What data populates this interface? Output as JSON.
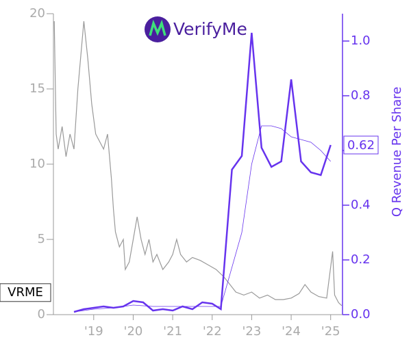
{
  "chart_data": {
    "type": "line",
    "logo": "VerifyMe",
    "xlim": [
      2017.98,
      2025.3
    ],
    "xticks": [
      {
        "value": 2019,
        "label": "'19"
      },
      {
        "value": 2020,
        "label": "'20"
      },
      {
        "value": 2021,
        "label": "'21"
      },
      {
        "value": 2022,
        "label": "'22"
      },
      {
        "value": 2023,
        "label": "'23"
      },
      {
        "value": 2024,
        "label": "'24"
      },
      {
        "value": 2025,
        "label": "'25"
      }
    ],
    "ylim": [
      0,
      20
    ],
    "yticks": [
      0,
      5,
      10,
      15,
      20
    ],
    "y2lim": [
      0,
      1.1
    ],
    "y2ticks": [
      {
        "value": 0,
        "label": "0.0"
      },
      0.2,
      0.4,
      0.6,
      0.8,
      {
        "value": 1,
        "label": "1.0"
      }
    ],
    "y2label": "Q Revenue Per Share",
    "series": [
      {
        "name": "VRME",
        "color": "#999999",
        "axis": "y",
        "x": [
          2018.0,
          2018.05,
          2018.1,
          2018.2,
          2018.3,
          2018.4,
          2018.5,
          2018.6,
          2018.7,
          2018.75,
          2018.85,
          2018.95,
          2019.05,
          2019.15,
          2019.25,
          2019.35,
          2019.45,
          2019.5,
          2019.55,
          2019.65,
          2019.75,
          2019.8,
          2019.9,
          2020.0,
          2020.1,
          2020.2,
          2020.3,
          2020.4,
          2020.5,
          2020.6,
          2020.75,
          2020.9,
          2021.0,
          2021.1,
          2021.2,
          2021.35,
          2021.5,
          2021.7,
          2021.9,
          2022.1,
          2022.3,
          2022.45,
          2022.6,
          2022.8,
          2023.0,
          2023.2,
          2023.4,
          2023.6,
          2023.8,
          2024.0,
          2024.2,
          2024.35,
          2024.5,
          2024.7,
          2024.9,
          2025.05,
          2025.1,
          2025.2,
          2025.28
        ],
        "values": [
          19.5,
          12,
          11,
          12.5,
          10.5,
          12,
          11,
          15,
          18,
          19.5,
          17,
          14,
          12,
          11.5,
          11,
          12,
          9,
          7,
          5.5,
          4.5,
          5,
          3,
          3.5,
          5,
          6.5,
          5,
          4,
          5,
          3.5,
          4,
          3,
          3.5,
          4,
          5,
          4,
          3.5,
          3.8,
          3.6,
          3.3,
          3.0,
          2.5,
          2.0,
          1.5,
          1.3,
          1.5,
          1.1,
          1.3,
          1.0,
          1.0,
          1.1,
          1.4,
          2.0,
          1.5,
          1.2,
          1.1,
          4.2,
          1.3,
          0.8,
          0.6
        ]
      },
      {
        "color": "#6633ee",
        "axis": "y2",
        "width": 2.5,
        "x": [
          2018.5,
          2018.75,
          2019.0,
          2019.25,
          2019.5,
          2019.75,
          2020.0,
          2020.25,
          2020.5,
          2020.75,
          2021.0,
          2021.25,
          2021.5,
          2021.75,
          2022.0,
          2022.22,
          2022.5,
          2022.75,
          2023.0,
          2023.25,
          2023.5,
          2023.75,
          2024.0,
          2024.25,
          2024.5,
          2024.75,
          2025.0
        ],
        "values": [
          0.01,
          0.02,
          0.025,
          0.03,
          0.025,
          0.03,
          0.05,
          0.045,
          0.015,
          0.02,
          0.015,
          0.03,
          0.02,
          0.045,
          0.04,
          0.02,
          0.53,
          0.58,
          1.03,
          0.61,
          0.54,
          0.56,
          0.86,
          0.56,
          0.52,
          0.51,
          0.62
        ]
      },
      {
        "color": "#6633ee",
        "axis": "y2",
        "width": 0.8,
        "x": [
          2018.5,
          2019.0,
          2019.5,
          2020.0,
          2020.5,
          2021.0,
          2021.5,
          2022.0,
          2022.22,
          2022.75,
          2023.0,
          2023.25,
          2023.5,
          2023.75,
          2024.0,
          2024.25,
          2024.5,
          2024.75,
          2025.0
        ],
        "values": [
          0.01,
          0.02,
          0.025,
          0.035,
          0.03,
          0.03,
          0.03,
          0.03,
          0.03,
          0.3,
          0.55,
          0.69,
          0.69,
          0.68,
          0.65,
          0.64,
          0.63,
          0.6,
          0.56
        ]
      }
    ]
  }
}
